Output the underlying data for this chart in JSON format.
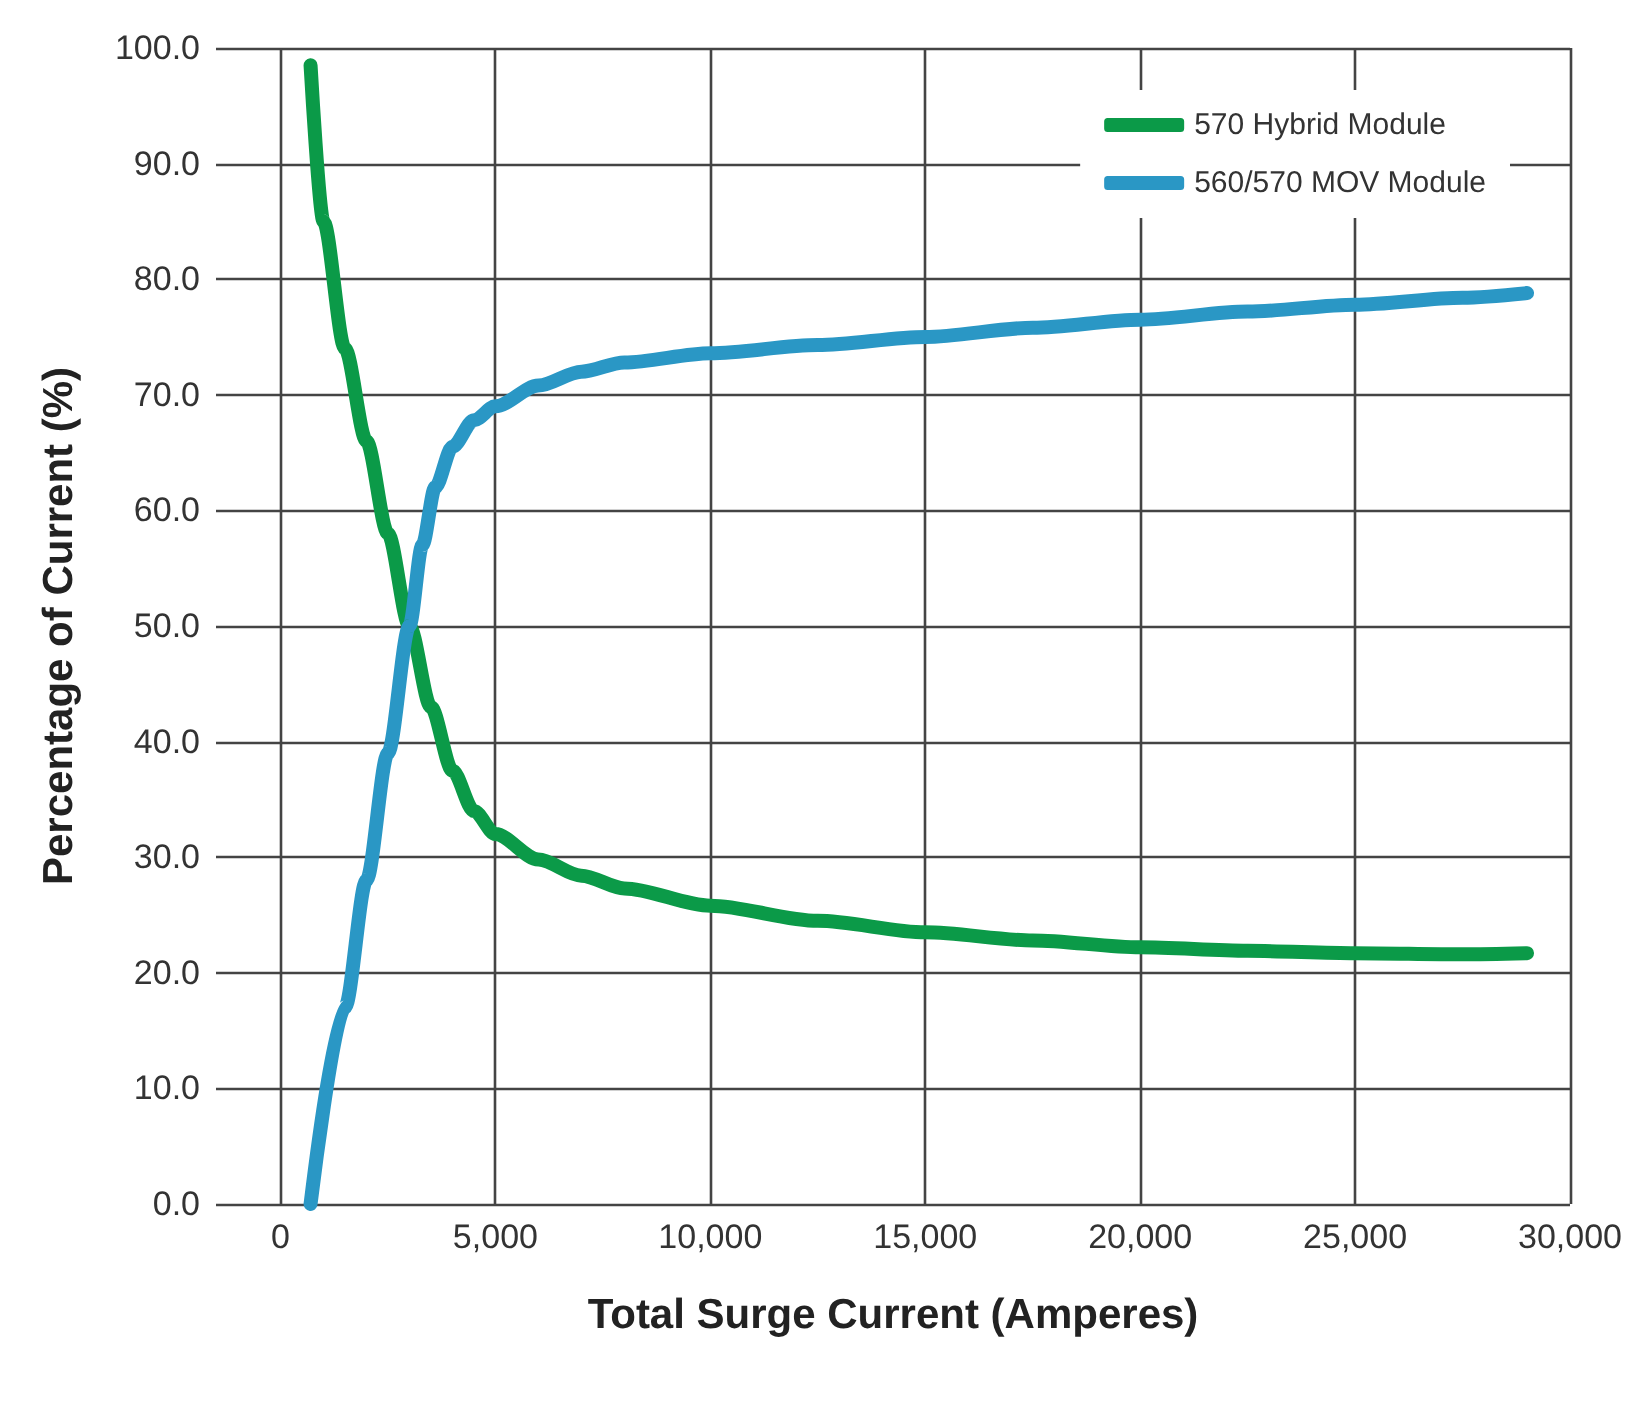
{
  "chart_data": {
    "type": "line",
    "xlabel": "Total Surge Current (Amperes)",
    "ylabel": "Percentage of Current (%)",
    "xlim": [
      -1500,
      30000
    ],
    "xticks": [
      {
        "value": 0,
        "label": "0"
      },
      {
        "value": 5000,
        "label": "5,000"
      },
      {
        "value": 10000,
        "label": "10,000"
      },
      {
        "value": 15000,
        "label": "15,000"
      },
      {
        "value": 20000,
        "label": "20,000"
      },
      {
        "value": 25000,
        "label": "25,000"
      },
      {
        "value": 30000,
        "label": "30,000"
      }
    ],
    "ylim": [
      0,
      100
    ],
    "yticks": [
      {
        "value": 0,
        "label": "0.0"
      },
      {
        "value": 10,
        "label": "10.0"
      },
      {
        "value": 20,
        "label": "20.0"
      },
      {
        "value": 30,
        "label": "30.0"
      },
      {
        "value": 40,
        "label": "40.0"
      },
      {
        "value": 50,
        "label": "50.0"
      },
      {
        "value": 60,
        "label": "60.0"
      },
      {
        "value": 70,
        "label": "70.0"
      },
      {
        "value": 80,
        "label": "80.0"
      },
      {
        "value": 90,
        "label": "90.0"
      },
      {
        "value": 100,
        "label": "100.0"
      }
    ],
    "grid": true,
    "legend": "top right",
    "marker": "none",
    "line_style": "solid",
    "series": [
      {
        "name": "570 Hybrid Module",
        "color": "#0b9a48",
        "x": [
          700,
          1000,
          1500,
          2000,
          2500,
          3000,
          3500,
          4000,
          4500,
          5000,
          6000,
          7000,
          8000,
          10000,
          12500,
          15000,
          17500,
          20000,
          22500,
          25000,
          27500,
          29000
        ],
        "values": [
          98.5,
          85,
          74,
          66,
          58,
          50,
          43,
          37.5,
          34,
          32,
          29.8,
          28.4,
          27.3,
          25.8,
          24.5,
          23.5,
          22.8,
          22.2,
          21.9,
          21.7,
          21.6,
          21.7
        ]
      },
      {
        "name": "560/570 MOV Module",
        "color": "#2a97c5",
        "x": [
          700,
          1500,
          2000,
          2500,
          3000,
          3300,
          3600,
          4000,
          4500,
          5000,
          6000,
          7000,
          8000,
          10000,
          12500,
          15000,
          17500,
          20000,
          22500,
          25000,
          27500,
          29000
        ],
        "values": [
          0,
          17,
          28,
          39,
          50,
          57,
          62,
          65.5,
          67.8,
          69,
          70.8,
          72,
          72.8,
          73.6,
          74.3,
          75,
          75.8,
          76.5,
          77.2,
          77.8,
          78.4,
          78.8
        ]
      }
    ]
  }
}
